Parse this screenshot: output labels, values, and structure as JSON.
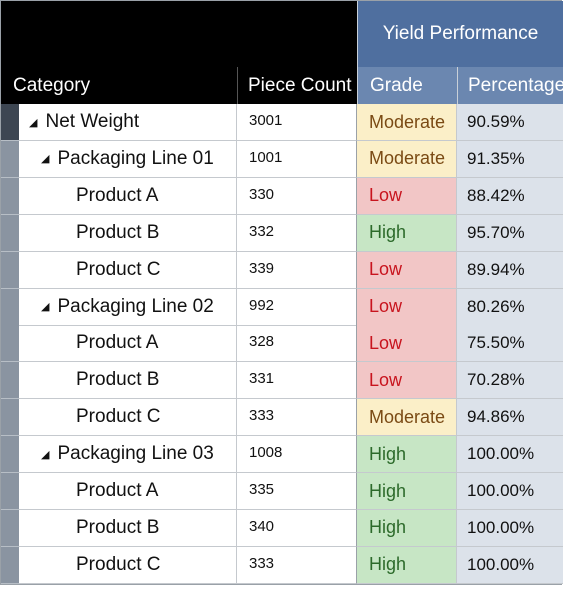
{
  "header": {
    "group_label": "Yield Performance",
    "columns": {
      "category": "Category",
      "piece_count": "Piece Count",
      "grade": "Grade",
      "percentage": "Percentage"
    }
  },
  "rows": [
    {
      "label": "Net Weight",
      "level": 0,
      "expandable": true,
      "count": "3001",
      "grade": "Moderate",
      "pct": "90.59%"
    },
    {
      "label": "Packaging Line 01",
      "level": 1,
      "expandable": true,
      "count": "1001",
      "grade": "Moderate",
      "pct": "91.35%"
    },
    {
      "label": "Product A",
      "level": 2,
      "expandable": false,
      "count": "330",
      "grade": "Low",
      "pct": "88.42%"
    },
    {
      "label": "Product B",
      "level": 2,
      "expandable": false,
      "count": "332",
      "grade": "High",
      "pct": "95.70%"
    },
    {
      "label": "Product C",
      "level": 2,
      "expandable": false,
      "count": "339",
      "grade": "Low",
      "pct": "89.94%"
    },
    {
      "label": "Packaging Line 02",
      "level": 1,
      "expandable": true,
      "count": "992",
      "grade": "Low",
      "pct": "80.26%"
    },
    {
      "label": "Product A",
      "level": 2,
      "expandable": false,
      "count": "328",
      "grade": "Low",
      "pct": "75.50%"
    },
    {
      "label": "Product B",
      "level": 2,
      "expandable": false,
      "count": "331",
      "grade": "Low",
      "pct": "70.28%"
    },
    {
      "label": "Product C",
      "level": 2,
      "expandable": false,
      "count": "333",
      "grade": "Moderate",
      "pct": "94.86%"
    },
    {
      "label": "Packaging Line 03",
      "level": 1,
      "expandable": true,
      "count": "1008",
      "grade": "High",
      "pct": "100.00%"
    },
    {
      "label": "Product A",
      "level": 2,
      "expandable": false,
      "count": "335",
      "grade": "High",
      "pct": "100.00%"
    },
    {
      "label": "Product B",
      "level": 2,
      "expandable": false,
      "count": "340",
      "grade": "High",
      "pct": "100.00%"
    },
    {
      "label": "Product C",
      "level": 2,
      "expandable": false,
      "count": "333",
      "grade": "High",
      "pct": "100.00%"
    }
  ],
  "colors": {
    "header_group": "#4f6f9f",
    "header_sub": "#6b87b0",
    "grade_moderate": "#fbefc8",
    "grade_low": "#f2c6c6",
    "grade_high": "#c7e6c5"
  },
  "icons": {
    "expander": "collapse-triangle-icon"
  }
}
